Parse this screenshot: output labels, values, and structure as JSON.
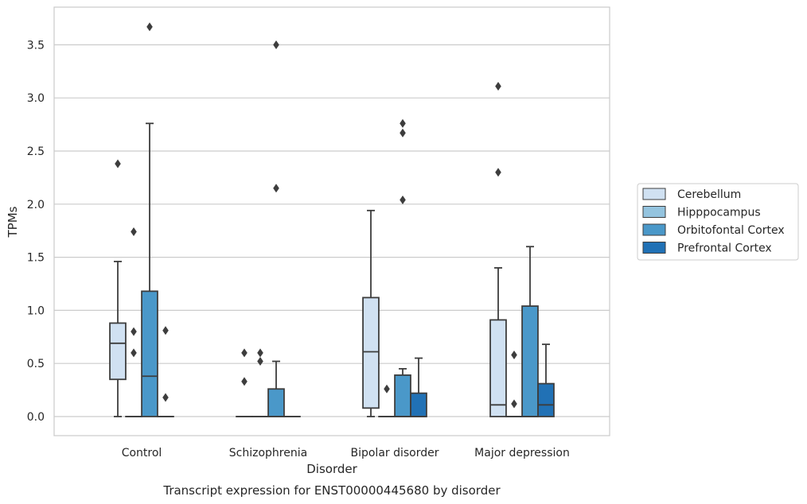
{
  "chart_data": {
    "type": "box",
    "title": "Transcript expression for ENST00000445680 by disorder",
    "xlabel": "Disorder",
    "ylabel": "TPMs",
    "ylim": [
      -0.18,
      3.87
    ],
    "yticks": [
      0.0,
      0.5,
      1.0,
      1.5,
      2.0,
      2.5,
      3.0,
      3.5
    ],
    "ytick_labels": [
      "0.0",
      "0.5",
      "1.0",
      "1.5",
      "2.0",
      "2.5",
      "3.0",
      "3.5"
    ],
    "grid": "horizontal",
    "legend_position": "right",
    "categories": [
      "Control",
      "Schizophrenia",
      "Bipolar disorder",
      "Major depression"
    ],
    "series": [
      {
        "name": "Cerebellum",
        "color": "#d0e1f2",
        "boxes": [
          {
            "q1": 0.35,
            "median": 0.69,
            "q3": 0.88,
            "whislo": 0.0,
            "whishi": 1.46,
            "fliers": [
              2.38
            ]
          },
          {
            "q1": 0.0,
            "median": 0.0,
            "q3": 0.0,
            "whislo": 0.0,
            "whishi": 0.0,
            "fliers": [
              0.33,
              0.6
            ]
          },
          {
            "q1": 0.08,
            "median": 0.61,
            "q3": 1.12,
            "whislo": 0.0,
            "whishi": 1.94,
            "fliers": []
          },
          {
            "q1": 0.0,
            "median": 0.11,
            "q3": 0.91,
            "whislo": 0.0,
            "whishi": 1.4,
            "fliers": [
              2.3,
              3.11
            ]
          }
        ]
      },
      {
        "name": "Hipppocampus",
        "color": "#94c4df",
        "boxes": [
          {
            "q1": 0.0,
            "median": 0.0,
            "q3": 0.0,
            "whislo": 0.0,
            "whishi": 0.0,
            "fliers": [
              0.6,
              0.8,
              1.74
            ]
          },
          {
            "q1": 0.0,
            "median": 0.0,
            "q3": 0.0,
            "whislo": 0.0,
            "whishi": 0.0,
            "fliers": [
              0.52,
              0.6
            ]
          },
          {
            "q1": 0.0,
            "median": 0.0,
            "q3": 0.0,
            "whislo": 0.0,
            "whishi": 0.0,
            "fliers": [
              0.26
            ]
          },
          {
            "q1": 0.0,
            "median": 0.0,
            "q3": 0.0,
            "whislo": 0.0,
            "whishi": 0.0,
            "fliers": [
              0.12,
              0.58
            ]
          }
        ]
      },
      {
        "name": "Orbitofontal Cortex",
        "color": "#4a98c9",
        "boxes": [
          {
            "q1": 0.0,
            "median": 0.38,
            "q3": 1.18,
            "whislo": 0.0,
            "whishi": 2.76,
            "fliers": [
              3.67
            ]
          },
          {
            "q1": 0.0,
            "median": 0.0,
            "q3": 0.26,
            "whislo": 0.0,
            "whishi": 0.52,
            "fliers": [
              2.15,
              3.5
            ]
          },
          {
            "q1": 0.0,
            "median": 0.0,
            "q3": 0.39,
            "whislo": 0.0,
            "whishi": 0.45,
            "fliers": [
              2.04,
              2.67,
              2.76
            ]
          },
          {
            "q1": 0.0,
            "median": 0.0,
            "q3": 1.04,
            "whislo": 0.0,
            "whishi": 1.6,
            "fliers": []
          }
        ]
      },
      {
        "name": "Prefrontal Cortex",
        "color": "#2171b5",
        "boxes": [
          {
            "q1": 0.0,
            "median": 0.0,
            "q3": 0.0,
            "whislo": 0.0,
            "whishi": 0.0,
            "fliers": [
              0.18,
              0.81
            ]
          },
          {
            "q1": 0.0,
            "median": 0.0,
            "q3": 0.0,
            "whislo": 0.0,
            "whishi": 0.0,
            "fliers": []
          },
          {
            "q1": 0.0,
            "median": 0.0,
            "q3": 0.22,
            "whislo": 0.0,
            "whishi": 0.55,
            "fliers": []
          },
          {
            "q1": 0.0,
            "median": 0.11,
            "q3": 0.31,
            "whislo": 0.0,
            "whishi": 0.68,
            "fliers": []
          }
        ]
      }
    ]
  }
}
